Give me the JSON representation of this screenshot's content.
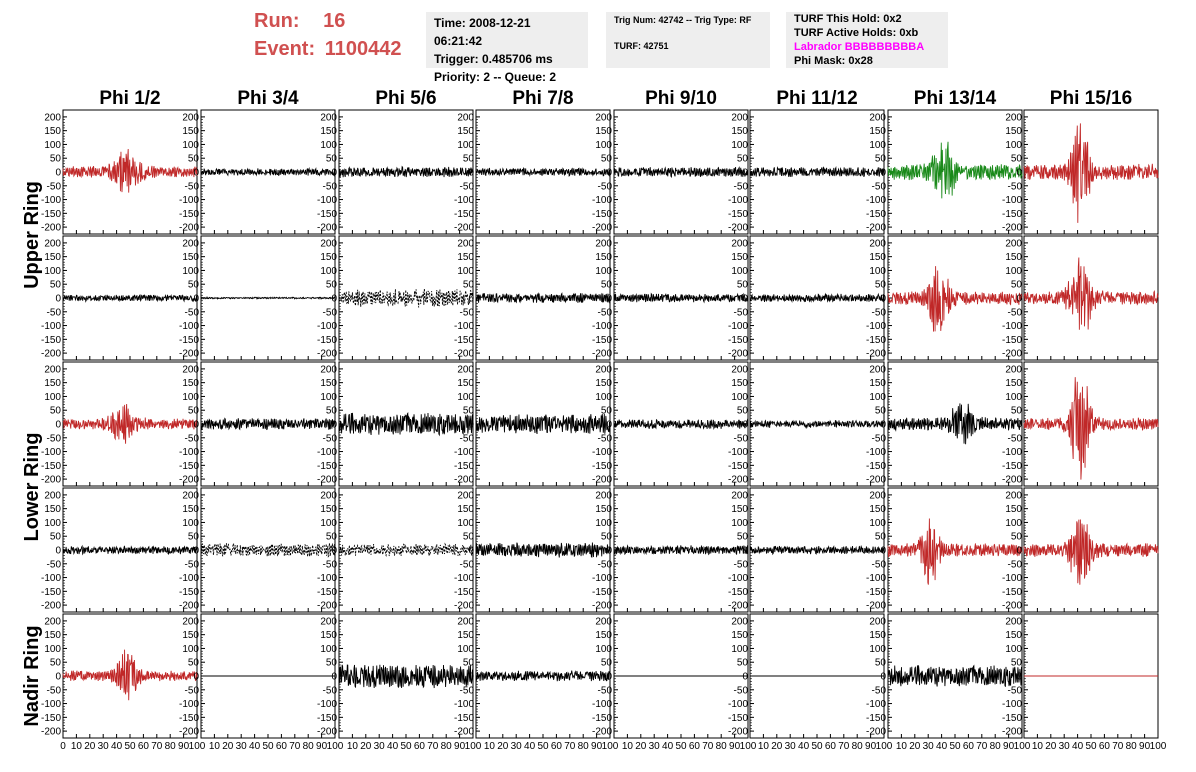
{
  "header": {
    "run_label": "Run:",
    "run_value": "16",
    "event_label": "Event:",
    "event_value": "1100442",
    "time": "Time: 2008-12-21 06:21:42",
    "trigger": "Trigger: 0.485706 ms",
    "priority": "Priority: 2 -- Queue: 2",
    "trig_num": "Trig Num: 42742 -- Trig Type: RF",
    "turf": "TURF: 42751",
    "turf_hold": "TURF This Hold: 0x2",
    "turf_active": "TURF Active Holds: 0xb",
    "labrador": "Labrador BBBBBBBBBA",
    "phi_mask": "Phi Mask: 0x28"
  },
  "colors": {
    "title_red": "#d05050",
    "labrador_magenta": "#ff00ff",
    "trace_black": "#000000",
    "trace_red": "#c02828",
    "trace_green": "#1a8a1a"
  },
  "chart_data": {
    "type": "line",
    "columns": [
      "Phi 1/2",
      "Phi 3/4",
      "Phi 5/6",
      "Phi 7/8",
      "Phi 9/10",
      "Phi 11/12",
      "Phi 13/14",
      "Phi 15/16"
    ],
    "ring_labels": [
      {
        "text": "Upper Ring",
        "rows": [
          0,
          1
        ]
      },
      {
        "text": "Lower Ring",
        "rows": [
          2,
          3
        ]
      },
      {
        "text": "Nadir Ring",
        "rows": [
          4,
          4
        ]
      }
    ],
    "ylim": [
      -225,
      225
    ],
    "yticks": [
      200,
      150,
      100,
      50,
      0,
      -50,
      -100,
      -150,
      -200
    ],
    "xlim": [
      0,
      100
    ],
    "xticks": [
      0,
      10,
      20,
      30,
      40,
      50,
      60,
      70,
      80,
      90,
      100
    ],
    "panels": [
      [
        {
          "color": "red",
          "style": "solid",
          "amp": 22,
          "peak": 68,
          "center": 48,
          "width": 10
        },
        {
          "color": "black",
          "style": "solid",
          "amp": 14,
          "peak": 0,
          "center": 50,
          "width": 30
        },
        {
          "color": "black",
          "style": "solid",
          "amp": 20,
          "peak": 0,
          "center": 50,
          "width": 30
        },
        {
          "color": "black",
          "style": "solid",
          "amp": 15,
          "peak": 0,
          "center": 50,
          "width": 30
        },
        {
          "color": "black",
          "style": "solid",
          "amp": 18,
          "peak": 0,
          "center": 50,
          "width": 30
        },
        {
          "color": "black",
          "style": "solid",
          "amp": 18,
          "peak": 0,
          "center": 50,
          "width": 30
        },
        {
          "color": "black",
          "style": "solid",
          "amp": 28,
          "peak": 0,
          "center": 50,
          "width": 30
        },
        {
          "color": "red",
          "style": "solid",
          "amp": 30,
          "peak": 215,
          "center": 42,
          "width": 6
        }
      ],
      [
        {
          "color": "black",
          "style": "solid",
          "amp": 12,
          "peak": 0,
          "center": 50,
          "width": 30
        },
        {
          "color": "black",
          "style": "solid",
          "amp": 3,
          "peak": 0,
          "center": 50,
          "width": 30
        },
        {
          "color": "black",
          "style": "dashed",
          "amp": 35,
          "peak": 0,
          "center": 25,
          "width": 25
        },
        {
          "color": "black",
          "style": "solid",
          "amp": 18,
          "peak": 0,
          "center": 50,
          "width": 30
        },
        {
          "color": "black",
          "style": "solid",
          "amp": 16,
          "peak": 0,
          "center": 50,
          "width": 30
        },
        {
          "color": "black",
          "style": "solid",
          "amp": 15,
          "peak": 0,
          "center": 50,
          "width": 30
        },
        {
          "color": "red",
          "style": "solid",
          "amp": 25,
          "peak": 140,
          "center": 38,
          "width": 7
        },
        {
          "color": "red",
          "style": "solid",
          "amp": 25,
          "peak": 160,
          "center": 42,
          "width": 8
        }
      ],
      [
        {
          "color": "red",
          "style": "solid",
          "amp": 20,
          "peak": 60,
          "center": 45,
          "width": 10
        },
        {
          "color": "black",
          "style": "solid",
          "amp": 22,
          "peak": 0,
          "center": 50,
          "width": 30
        },
        {
          "color": "black",
          "style": "solid",
          "amp": 42,
          "peak": 0,
          "center": 50,
          "width": 30
        },
        {
          "color": "black",
          "style": "solid",
          "amp": 38,
          "peak": 0,
          "center": 70,
          "width": 25
        },
        {
          "color": "black",
          "style": "solid",
          "amp": 18,
          "peak": 0,
          "center": 50,
          "width": 30
        },
        {
          "color": "black",
          "style": "solid",
          "amp": 14,
          "peak": 0,
          "center": 50,
          "width": 30
        },
        {
          "color": "black",
          "style": "solid",
          "amp": 25,
          "peak": 70,
          "center": 55,
          "width": 8
        },
        {
          "color": "red",
          "style": "solid",
          "amp": 25,
          "peak": 200,
          "center": 42,
          "width": 7
        }
      ],
      [
        {
          "color": "black",
          "style": "solid",
          "amp": 15,
          "peak": 0,
          "center": 50,
          "width": 30
        },
        {
          "color": "black",
          "style": "dashed",
          "amp": 25,
          "peak": 0,
          "center": 60,
          "width": 30
        },
        {
          "color": "black",
          "style": "dashed",
          "amp": 22,
          "peak": 0,
          "center": 65,
          "width": 25
        },
        {
          "color": "black",
          "style": "solid",
          "amp": 28,
          "peak": 0,
          "center": 70,
          "width": 30
        },
        {
          "color": "black",
          "style": "solid",
          "amp": 17,
          "peak": 0,
          "center": 50,
          "width": 30
        },
        {
          "color": "black",
          "style": "solid",
          "amp": 15,
          "peak": 0,
          "center": 50,
          "width": 30
        },
        {
          "color": "red",
          "style": "solid",
          "amp": 25,
          "peak": 130,
          "center": 32,
          "width": 7
        },
        {
          "color": "red",
          "style": "solid",
          "amp": 25,
          "peak": 120,
          "center": 42,
          "width": 8
        }
      ],
      [
        {
          "color": "red",
          "style": "solid",
          "amp": 20,
          "peak": 90,
          "center": 48,
          "width": 7
        },
        {
          "color": "black",
          "style": "solid",
          "amp": 0,
          "peak": 0,
          "center": 50,
          "width": 30
        },
        {
          "color": "black",
          "style": "solid",
          "amp": 45,
          "peak": 0,
          "center": 60,
          "width": 25
        },
        {
          "color": "black",
          "style": "solid",
          "amp": 20,
          "peak": 0,
          "center": 50,
          "width": 30
        },
        {
          "color": "black",
          "style": "solid",
          "amp": 0,
          "peak": 0,
          "center": 50,
          "width": 30
        },
        {
          "color": "black",
          "style": "solid",
          "amp": 0,
          "peak": 0,
          "center": 50,
          "width": 30
        },
        {
          "color": "black",
          "style": "solid",
          "amp": 40,
          "peak": 0,
          "center": 60,
          "width": 25
        },
        {
          "color": "red",
          "style": "solid",
          "amp": 0,
          "peak": 0,
          "center": 50,
          "width": 30
        }
      ]
    ],
    "green_panel": {
      "row": 0,
      "col": 6,
      "amp": 30,
      "peak": 100,
      "center": 42,
      "width": 8
    }
  }
}
